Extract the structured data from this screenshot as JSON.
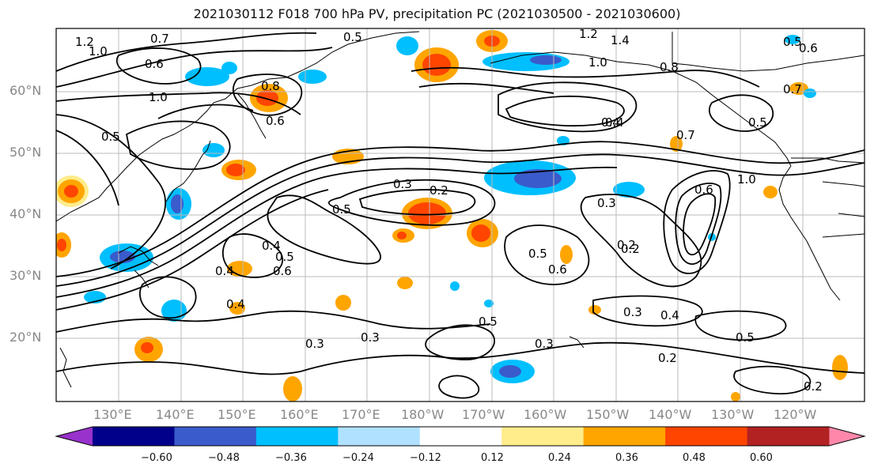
{
  "title": "2021030112 F018 700 hPa PV, precipitation PC (2021030500 - 2021030600)",
  "lat_labels": [
    "60°N",
    "50°N",
    "40°N",
    "30°N",
    "20°N"
  ],
  "lon_labels": [
    "130°E",
    "140°E",
    "150°E",
    "160°E",
    "170°E",
    "180°W",
    "170°W",
    "160°W",
    "150°W",
    "140°W",
    "130°W",
    "120°W"
  ],
  "colorbar": {
    "ticks": [
      "−0.60",
      "−0.48",
      "−0.36",
      "−0.24",
      "−0.12",
      "0.12",
      "0.24",
      "0.36",
      "0.48",
      "0.60"
    ],
    "colors": [
      "#9932cc",
      "#00008b",
      "#3a5bcb",
      "#00bfff",
      "#b0e2ff",
      "#ffffff",
      "#ffec8b",
      "#ffa500",
      "#ff4500",
      "#b22222",
      "#ff88aa"
    ]
  },
  "contour_labels": [
    "1.2",
    "1.0",
    "0.7",
    "0.6",
    "0.5",
    "1.0",
    "0.8",
    "0.6",
    "0.5",
    "0.3",
    "0.2",
    "0.5",
    "0.4",
    "0.5",
    "0.6",
    "0.4",
    "0.3",
    "0.3",
    "0.6",
    "0.5",
    "0.2",
    "0.7",
    "0.4",
    "1.2",
    "1.4",
    "1.0",
    "0.8",
    "0.4",
    "0.6",
    "0.3",
    "0.2",
    "0.5",
    "0.4",
    "0.2",
    "0.3",
    "0.4",
    "0.3",
    "0.5",
    "0.2",
    "0.5",
    "1.0",
    "0.5",
    "0.7",
    "0.6"
  ]
}
